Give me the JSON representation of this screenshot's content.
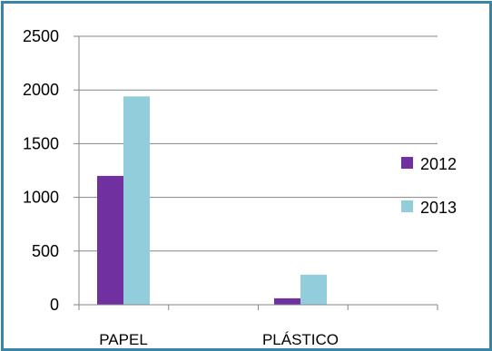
{
  "chart_data": {
    "type": "bar",
    "categories": [
      "PAPEL",
      "PLÁSTICO"
    ],
    "series": [
      {
        "name": "2012",
        "values": [
          1200,
          60
        ],
        "color": "#7030a0"
      },
      {
        "name": "2013",
        "values": [
          1940,
          280
        ],
        "color": "#92cddc"
      }
    ],
    "ylim": [
      0,
      2500
    ],
    "yticks": [
      "0",
      "500",
      "1000",
      "1500",
      "2000",
      "2500"
    ],
    "grid": true,
    "legend": "right"
  },
  "colors": {
    "border": "#3a84a8",
    "grid": "#868686"
  }
}
